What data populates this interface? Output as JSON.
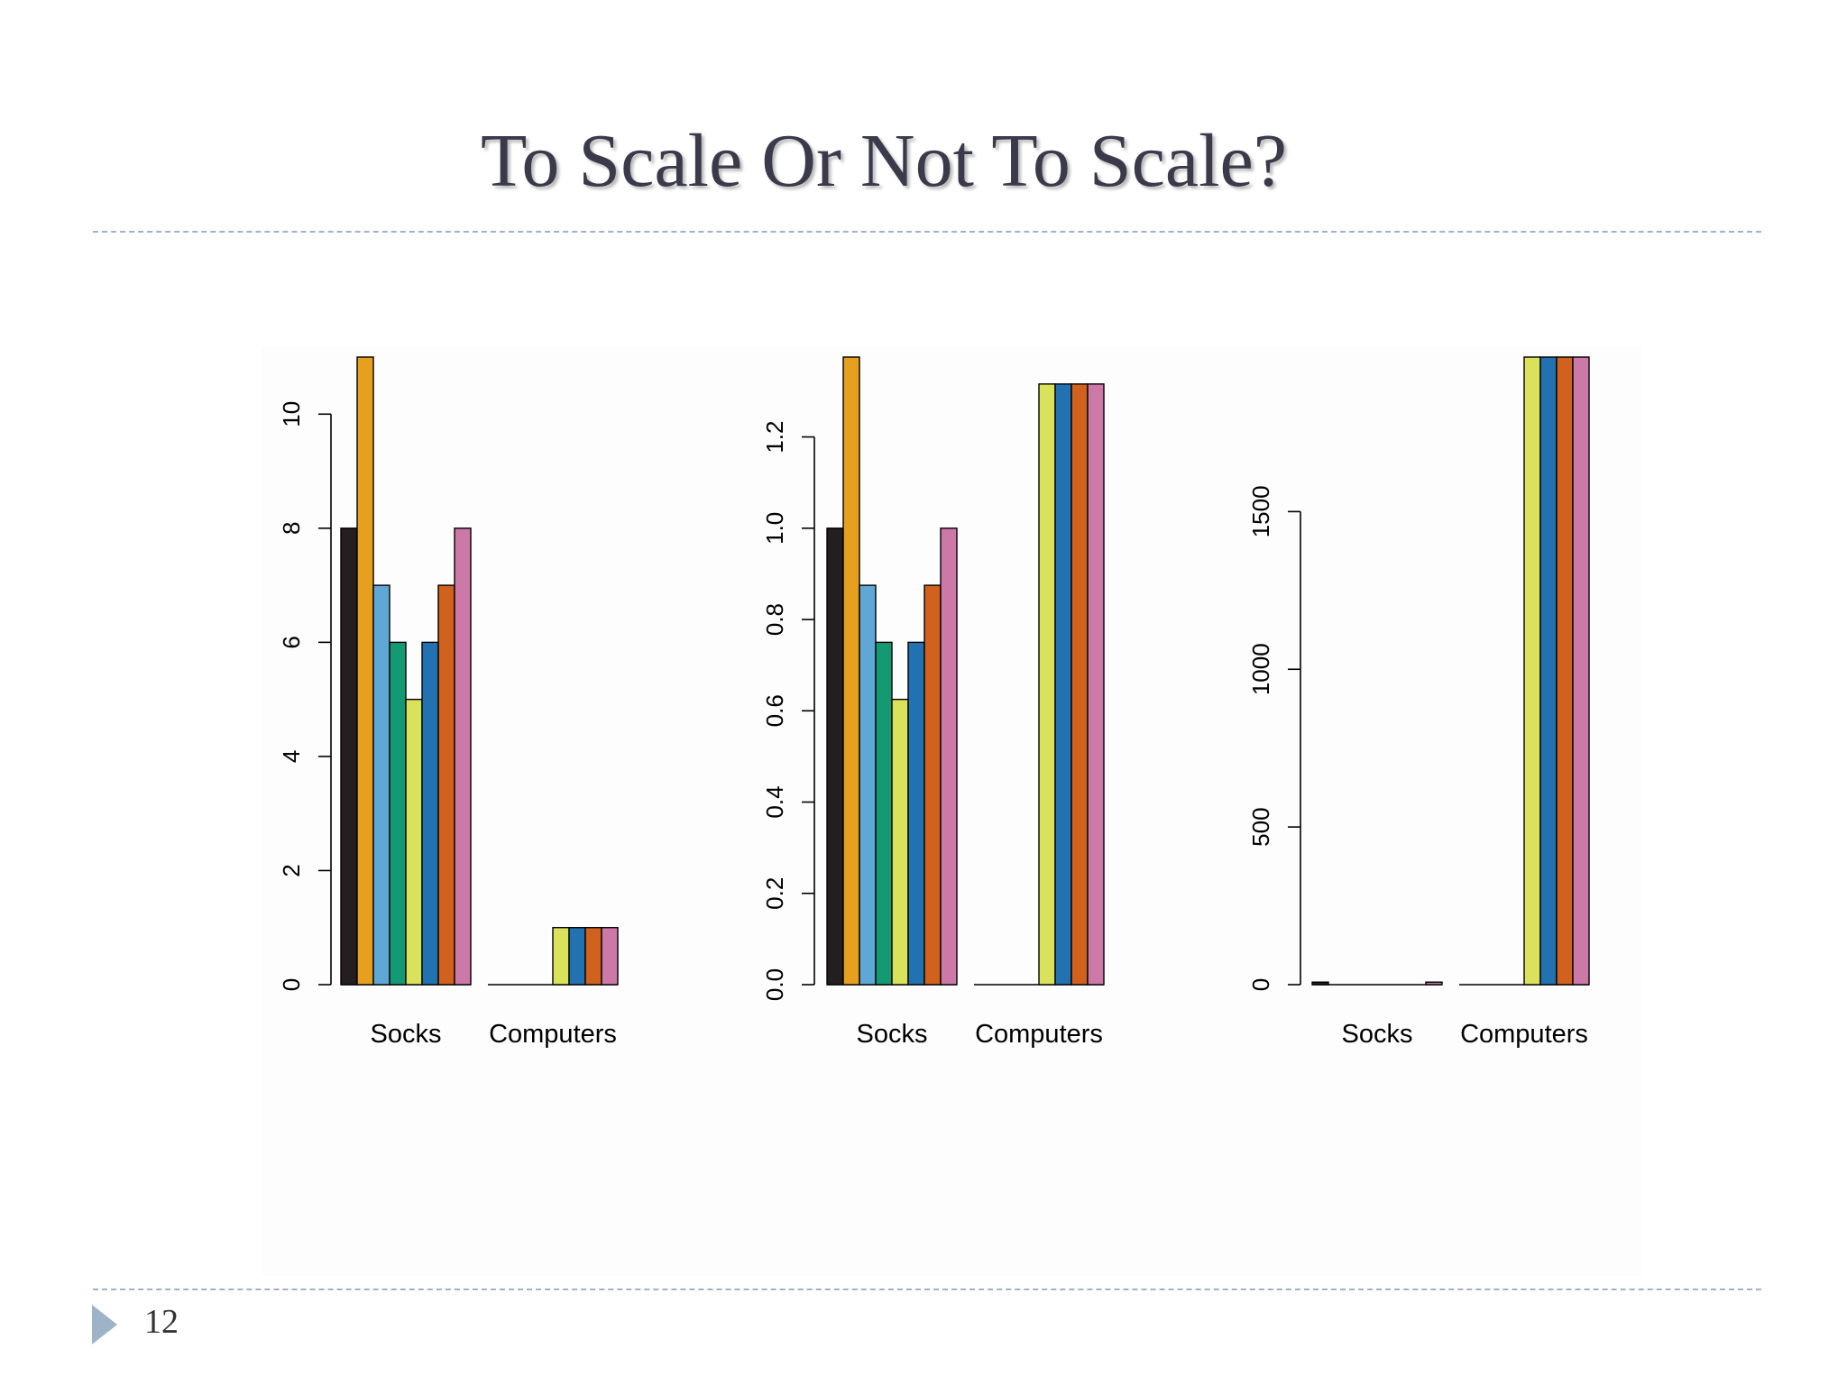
{
  "slide": {
    "title": "To Scale Or Not To Scale?",
    "page_number": "12"
  },
  "colors": {
    "title": "#3a3a4a",
    "divider": "#9fb3c8",
    "bar_palette": [
      "#231f20",
      "#e69f1f",
      "#5fa8d6",
      "#139a72",
      "#d9e25a",
      "#2272b2",
      "#d1621d",
      "#cc79a7"
    ]
  },
  "chart_data": [
    {
      "type": "bar",
      "title": "",
      "xlabel": "",
      "ylabel": "",
      "categories": [
        "Socks",
        "Computers"
      ],
      "yticks": [
        "0",
        "2",
        "4",
        "6",
        "8",
        "10"
      ],
      "ylim": [
        0,
        11
      ],
      "grid": false,
      "series": [
        {
          "values": [
            8,
            0
          ]
        },
        {
          "values": [
            11,
            0
          ]
        },
        {
          "values": [
            7,
            0
          ]
        },
        {
          "values": [
            6,
            0
          ]
        },
        {
          "values": [
            5,
            1
          ]
        },
        {
          "values": [
            6,
            1
          ]
        },
        {
          "values": [
            7,
            1
          ]
        },
        {
          "values": [
            8,
            1
          ]
        }
      ]
    },
    {
      "type": "bar",
      "title": "",
      "xlabel": "",
      "ylabel": "",
      "categories": [
        "Socks",
        "Computers"
      ],
      "yticks": [
        "0.0",
        "0.2",
        "0.4",
        "0.6",
        "0.8",
        "1.0",
        "1.2"
      ],
      "ylim": [
        0,
        1.375
      ],
      "grid": false,
      "series": [
        {
          "values": [
            1.0,
            0
          ]
        },
        {
          "values": [
            1.375,
            0
          ]
        },
        {
          "values": [
            0.875,
            0
          ]
        },
        {
          "values": [
            0.75,
            0
          ]
        },
        {
          "values": [
            0.625,
            1.316
          ]
        },
        {
          "values": [
            0.75,
            1.316
          ]
        },
        {
          "values": [
            0.875,
            1.316
          ]
        },
        {
          "values": [
            1.0,
            1.316
          ]
        }
      ]
    },
    {
      "type": "bar",
      "title": "",
      "xlabel": "",
      "ylabel": "",
      "categories": [
        "Socks",
        "Computers"
      ],
      "yticks": [
        "0",
        "500",
        "1000",
        "1500"
      ],
      "ylim": [
        0,
        1990
      ],
      "grid": false,
      "series": [
        {
          "values": [
            8,
            0
          ]
        },
        {
          "values": [
            0,
            0
          ]
        },
        {
          "values": [
            0,
            0
          ]
        },
        {
          "values": [
            0,
            0
          ]
        },
        {
          "values": [
            0,
            1990
          ]
        },
        {
          "values": [
            0,
            1990
          ]
        },
        {
          "values": [
            0,
            1990
          ]
        },
        {
          "values": [
            8,
            1990
          ]
        }
      ]
    }
  ]
}
